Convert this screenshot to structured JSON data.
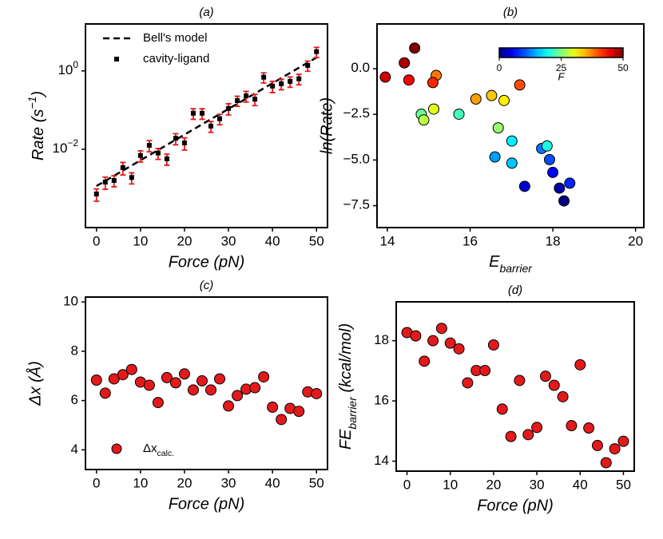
{
  "chart_data": [
    {
      "type": "scatter",
      "title": "(a)",
      "xlabel": "Force (pN)",
      "ylabel": {
        "text": "Rate (s",
        "sup": "−1",
        "tail": ")"
      },
      "log_y": true,
      "legend": "upper left",
      "xlim": [
        -2.5,
        52.5
      ],
      "xticks": [
        0,
        10,
        20,
        30,
        40,
        50
      ],
      "ylim": [
        0.0001,
        15.8
      ],
      "yticks": [
        {
          "value": 0.01,
          "label": "10",
          "power": "−2"
        },
        {
          "value": 1,
          "label": "10",
          "power": "0"
        }
      ],
      "series": [
        {
          "name": "Bell's model",
          "color": "#000000",
          "line": "dashed",
          "x": [
            0,
            50
          ],
          "values": [
            0.00115,
            2.2
          ]
        },
        {
          "name": "cavity-ligand",
          "color": "#000000",
          "marker": "square",
          "error_color": "#e31a1c",
          "x": [
            0,
            2,
            4,
            6,
            8,
            10,
            12,
            14,
            16,
            18,
            20,
            22,
            24,
            26,
            28,
            30,
            32,
            34,
            36,
            38,
            40,
            42,
            44,
            46,
            48,
            50
          ],
          "values": [
            0.00072,
            0.00145,
            0.0016,
            0.0034,
            0.0019,
            0.0069,
            0.0126,
            0.008,
            0.0057,
            0.019,
            0.0145,
            0.083,
            0.083,
            0.039,
            0.06,
            0.11,
            0.175,
            0.23,
            0.19,
            0.69,
            0.41,
            0.47,
            0.54,
            0.63,
            1.38,
            3.1
          ],
          "errors": [
            0.00025,
            0.0005,
            0.0005,
            0.0012,
            0.0006,
            0.0022,
            0.004,
            0.0025,
            0.0018,
            0.006,
            0.005,
            0.025,
            0.025,
            0.012,
            0.018,
            0.035,
            0.05,
            0.07,
            0.06,
            0.2,
            0.13,
            0.14,
            0.16,
            0.19,
            0.4,
            0.9
          ]
        }
      ]
    },
    {
      "type": "scatter",
      "title": "(b)",
      "xlabel": {
        "text": "E",
        "sub": "barrier"
      },
      "ylabel": "ln(Rate)",
      "xlim": [
        13.75,
        20.2
      ],
      "xticks": [
        14,
        16,
        18,
        20
      ],
      "ylim": [
        -8.7,
        2.45
      ],
      "yticks": [
        {
          "value": -7.5,
          "label": "−7.5"
        },
        {
          "value": -5,
          "label": "−5.0"
        },
        {
          "value": -2.5,
          "label": "−2.5"
        },
        {
          "value": 0,
          "label": "0.0"
        }
      ],
      "x": [
        18.27,
        18.16,
        17.32,
        18.0,
        18.41,
        17.92,
        17.73,
        16.6,
        17.01,
        17.01,
        17.86,
        15.73,
        14.82,
        16.68,
        14.88,
        15.12,
        16.82,
        16.52,
        16.14,
        15.18,
        17.2,
        15.1,
        14.52,
        13.95,
        14.41,
        14.66
      ],
      "values": [
        -7.24,
        -6.54,
        -6.44,
        -5.68,
        -6.27,
        -4.98,
        -4.37,
        -4.83,
        -5.17,
        -3.96,
        -4.23,
        -2.49,
        -2.49,
        -3.24,
        -2.81,
        -2.21,
        -1.74,
        -1.47,
        -1.66,
        -0.37,
        -0.89,
        -0.76,
        -0.62,
        -0.46,
        0.32,
        1.13
      ],
      "c": [
        0,
        2,
        4,
        6,
        8,
        10,
        12,
        14,
        16,
        18,
        20,
        22,
        24,
        26,
        28,
        30,
        32,
        34,
        36,
        38,
        40,
        42,
        44,
        46,
        48,
        50
      ],
      "colormap": "jet",
      "clim": [
        0,
        50
      ],
      "colorbar": {
        "label": "F",
        "ticks": [
          0,
          25,
          50
        ]
      }
    },
    {
      "type": "scatter",
      "title": "(c)",
      "xlabel": "Force (pN)",
      "ylabel": "Δx (Å)",
      "legend": "lower left",
      "xlim": [
        -2.5,
        52.5
      ],
      "xticks": [
        0,
        10,
        20,
        30,
        40,
        50
      ],
      "ylim": [
        3.2,
        10.2
      ],
      "yticks": [
        4,
        6,
        8,
        10
      ],
      "series": [
        {
          "name": {
            "text": "Δx",
            "sub": "calc."
          },
          "color": "#e31a1c",
          "x": [
            0,
            2,
            4,
            6,
            8,
            10,
            12,
            14,
            16,
            18,
            20,
            22,
            24,
            26,
            28,
            30,
            32,
            34,
            36,
            38,
            40,
            42,
            44,
            46,
            48,
            50
          ],
          "values": [
            6.83,
            6.3,
            6.88,
            7.05,
            7.26,
            6.75,
            6.62,
            5.92,
            6.93,
            6.72,
            7.08,
            6.43,
            6.8,
            6.43,
            6.88,
            5.78,
            6.2,
            6.46,
            6.52,
            6.96,
            5.73,
            5.23,
            5.68,
            5.56,
            6.35,
            6.28
          ]
        }
      ]
    },
    {
      "type": "scatter",
      "title": "(d)",
      "xlabel": "Force (pN)",
      "ylabel": {
        "text": "FE",
        "sub": "barrier",
        "tail": " (kcal/mol)"
      },
      "xlim": [
        -2.5,
        52.5
      ],
      "xticks": [
        0,
        10,
        20,
        30,
        40,
        50
      ],
      "ylim": [
        13.67,
        19.29
      ],
      "yticks": [
        14,
        16,
        18
      ],
      "color": "#e31a1c",
      "x": [
        0,
        2,
        4,
        6,
        8,
        10,
        12,
        14,
        16,
        18,
        20,
        22,
        24,
        26,
        28,
        30,
        32,
        34,
        36,
        38,
        40,
        42,
        44,
        46,
        48,
        50
      ],
      "values": [
        18.27,
        18.16,
        17.32,
        18.0,
        18.41,
        17.92,
        17.73,
        16.6,
        17.01,
        17.01,
        17.86,
        15.73,
        14.82,
        16.68,
        14.88,
        15.12,
        16.82,
        16.52,
        16.14,
        15.18,
        17.2,
        15.1,
        14.52,
        13.95,
        14.41,
        14.66
      ]
    }
  ]
}
